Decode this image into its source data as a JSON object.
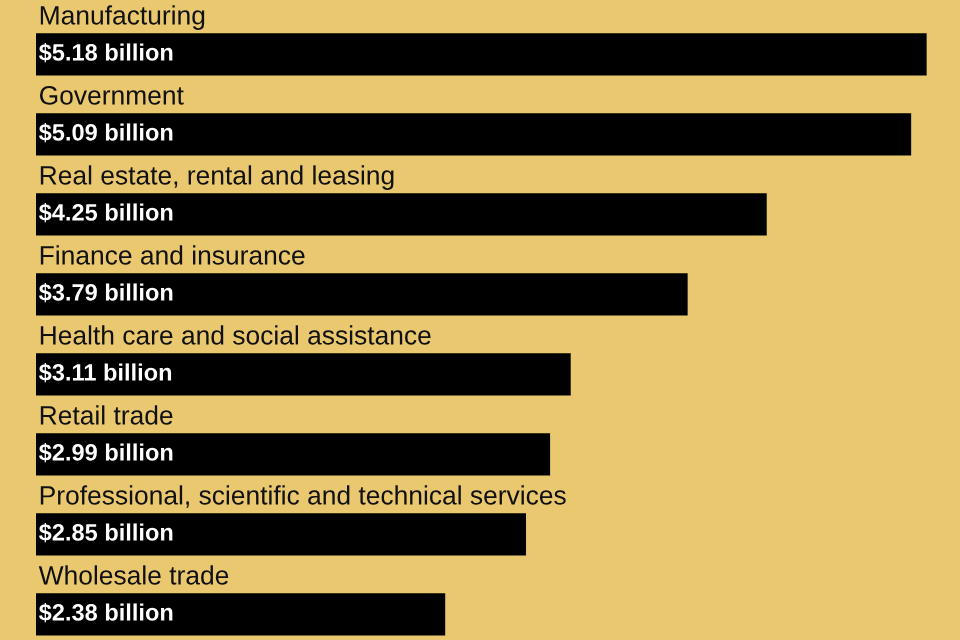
{
  "chart_data": {
    "type": "bar",
    "orientation": "horizontal",
    "categories": [
      "Manufacturing",
      "Government",
      "Real estate, rental and leasing",
      "Finance and insurance",
      "Health care and social assistance",
      "Retail trade",
      "Professional, scientific and technical services",
      "Wholesale trade"
    ],
    "values": [
      5.18,
      5.09,
      4.25,
      3.79,
      3.11,
      2.99,
      2.85,
      2.38
    ],
    "value_labels": [
      "$5.18 billion",
      "$5.09 billion",
      "$4.25 billion",
      "$3.79 billion",
      "$3.11 billion",
      "$2.99 billion",
      "$2.85 billion",
      "$2.38 billion"
    ],
    "color": "#000000"
  }
}
